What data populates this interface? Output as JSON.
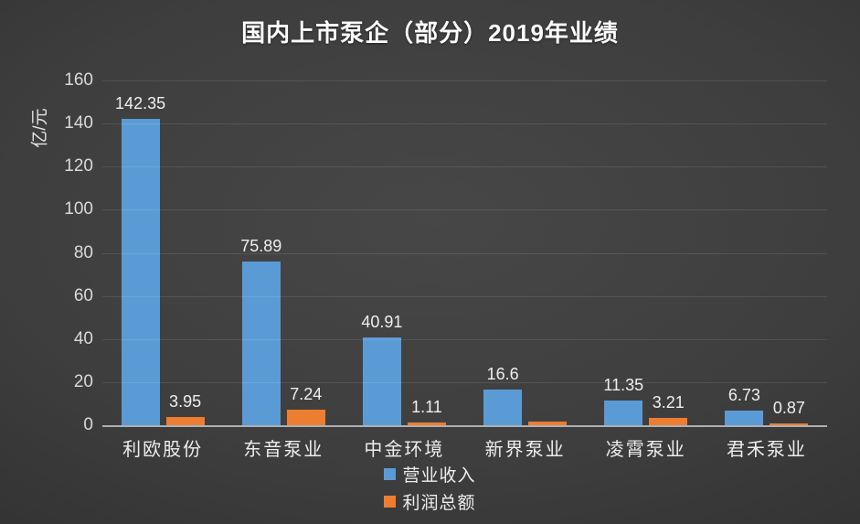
{
  "title": "国内上市泵企（部分）2019年业绩",
  "chart_data": {
    "type": "bar",
    "title": "国内上市泵企（部分）2019年业绩",
    "xlabel": "",
    "ylabel": "亿/元",
    "ylim": [
      0,
      160
    ],
    "ytick_step": 20,
    "yticks": [
      0,
      20,
      40,
      60,
      80,
      100,
      120,
      140,
      160
    ],
    "grid": true,
    "legend_position": "bottom",
    "categories": [
      "利欧股份",
      "东音泵业",
      "中金环境",
      "新界泵业",
      "凌霄泵业",
      "君禾泵业"
    ],
    "series": [
      {
        "name": "营业收入",
        "color": "#5b9bd5",
        "values": [
          142.35,
          75.89,
          40.91,
          16.6,
          11.35,
          6.73
        ],
        "labels": [
          "142.35",
          "75.89",
          "40.91",
          "16.6",
          "11.35",
          "6.73"
        ]
      },
      {
        "name": "利润总额",
        "color": "#ed7d31",
        "values": [
          3.95,
          7.24,
          1.11,
          1.7,
          3.21,
          0.87
        ],
        "labels": [
          "3.95",
          "7.24",
          "1.11",
          "",
          "3.21",
          "0.87"
        ]
      }
    ]
  },
  "colors": {
    "background_center": "#474747",
    "background_edge": "#1e1e1e",
    "axis_line": "#aab0b5",
    "gridline": "rgba(255,255,255,0.10)",
    "text": "#ededed",
    "title_text": "#fdfdfd"
  }
}
